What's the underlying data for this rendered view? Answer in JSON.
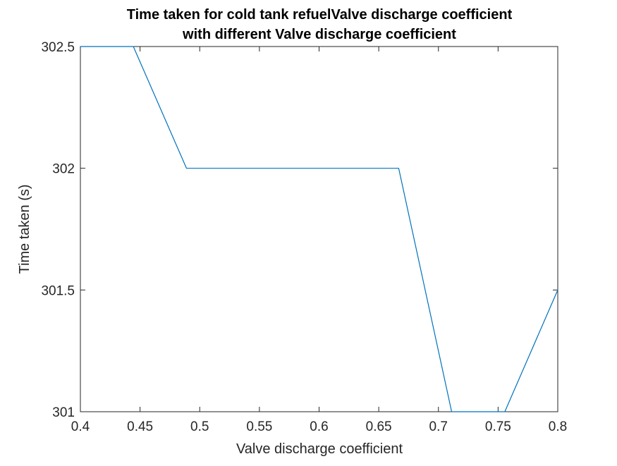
{
  "chart_data": {
    "type": "line",
    "title": [
      "Time taken for cold tank refuelValve discharge coefficient",
      "with different Valve discharge coefficient"
    ],
    "xlabel": "Valve discharge coefficient",
    "ylabel": "Time taken (s)",
    "xlim": [
      0.4,
      0.8
    ],
    "ylim": [
      301,
      302.5
    ],
    "xticks": [
      0.4,
      0.45,
      0.5,
      0.55,
      0.6,
      0.65,
      0.7,
      0.75,
      0.8
    ],
    "xtick_labels": [
      "0.4",
      "0.45",
      "0.5",
      "0.55",
      "0.6",
      "0.65",
      "0.7",
      "0.75",
      "0.8"
    ],
    "yticks": [
      301,
      301.5,
      302,
      302.5
    ],
    "ytick_labels": [
      "301",
      "301.5",
      "302",
      "302.5"
    ],
    "grid": false,
    "box": true,
    "series": [
      {
        "color": "#0072BD",
        "x": [
          0.4,
          0.4444,
          0.4889,
          0.5333,
          0.5778,
          0.6222,
          0.6667,
          0.7111,
          0.7556,
          0.8
        ],
        "y": [
          302.5,
          302.5,
          302,
          302,
          302,
          302,
          302,
          301,
          301,
          301.5
        ]
      }
    ]
  }
}
